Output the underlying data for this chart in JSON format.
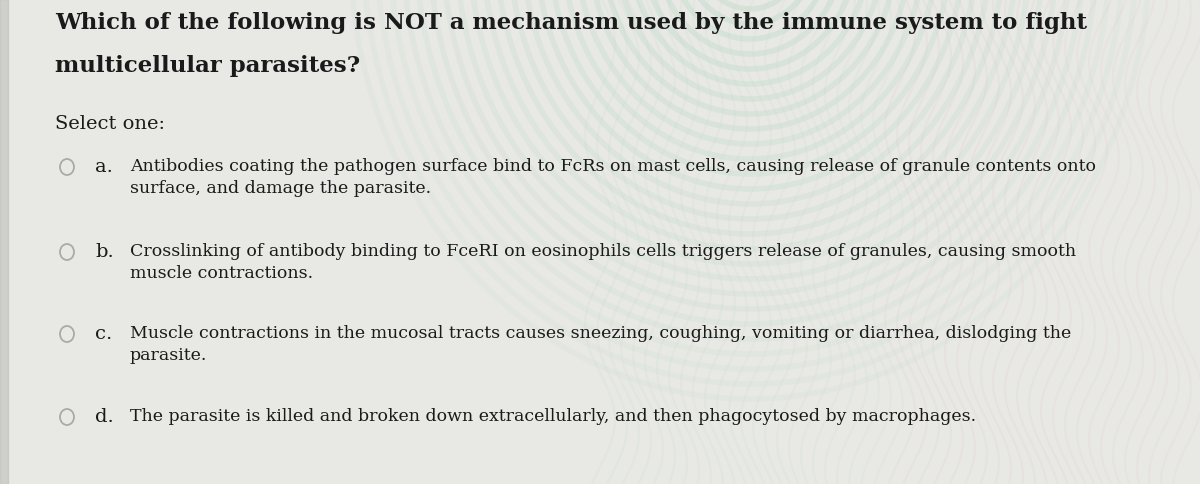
{
  "background_color": "#e8e8e4",
  "title_line1": "Which of the following is NOT a mechanism used by the immune system to fight",
  "title_line2": "multicellular parasites?",
  "select_label": "Select one:",
  "options": [
    {
      "letter": "a.",
      "text_line1": "Antibodies coating the pathogen surface bind to FcRs on mast cells, causing release of granule contents onto",
      "text_line2": "surface, and damage the parasite."
    },
    {
      "letter": "b.",
      "text_line1": "Crosslinking of antibody binding to FceRI on eosinophils cells triggers release of granules, causing smooth",
      "text_line2": "muscle contractions."
    },
    {
      "letter": "c.",
      "text_line1": "Muscle contractions in the mucosal tracts causes sneezing, coughing, vomiting or diarrhea, dislodging the",
      "text_line2": "parasite."
    },
    {
      "letter": "d.",
      "text_line1": "The parasite is killed and broken down extracellularly, and then phagocytosed by macrophages.",
      "text_line2": ""
    }
  ],
  "text_color": "#1a1a1a",
  "circle_color": "#aaaaaa",
  "title_fontsize": 16.5,
  "select_fontsize": 14,
  "option_letter_fontsize": 14,
  "option_text_fontsize": 12.5,
  "wave_colors": [
    "#c8e8d0",
    "#f0c8c0",
    "#e8e8e0"
  ],
  "left_bar_color": "#d0d0cc"
}
